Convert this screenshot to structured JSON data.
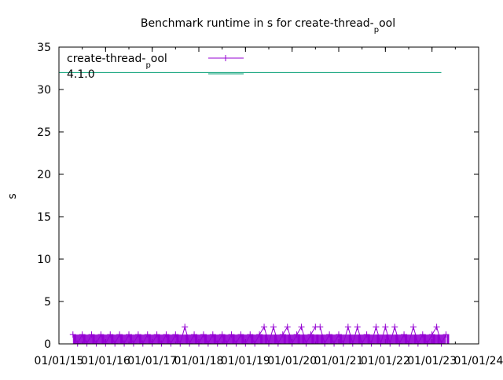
{
  "chart_data": {
    "type": "line",
    "title": "Benchmark runtime in s for create-thread-_pool",
    "xlabel": "",
    "ylabel": "s",
    "ylim": [
      0,
      35
    ],
    "xlim": [
      2015,
      2024
    ],
    "yticks": [
      0,
      5,
      10,
      15,
      20,
      25,
      30,
      35
    ],
    "xticks": [
      2015,
      2016,
      2017,
      2018,
      2019,
      2020,
      2021,
      2022,
      2023,
      2024
    ],
    "xtick_labels": [
      "01/01/15",
      "01/01/16",
      "01/01/17",
      "01/01/18",
      "01/01/19",
      "01/01/20",
      "01/01/21",
      "01/01/22",
      "01/01/23",
      "01/01/24"
    ],
    "legend_placement": "top-left",
    "series": [
      {
        "name": "create-thread-_pool",
        "color": "#9400d3",
        "style": "linespoints",
        "x": [
          2015.3,
          2015.4,
          2015.5,
          2015.6,
          2015.7,
          2015.8,
          2015.9,
          2016.0,
          2016.1,
          2016.2,
          2016.3,
          2016.4,
          2016.5,
          2016.6,
          2016.7,
          2016.8,
          2016.9,
          2017.0,
          2017.1,
          2017.2,
          2017.3,
          2017.4,
          2017.5,
          2017.6,
          2017.7,
          2017.8,
          2017.9,
          2018.0,
          2018.1,
          2018.2,
          2018.3,
          2018.4,
          2018.5,
          2018.6,
          2018.7,
          2018.8,
          2018.9,
          2019.0,
          2019.1,
          2019.2,
          2019.3,
          2019.4,
          2019.5,
          2019.6,
          2019.7,
          2019.8,
          2019.9,
          2020.0,
          2020.1,
          2020.2,
          2020.3,
          2020.4,
          2020.5,
          2020.6,
          2020.7,
          2020.8,
          2020.9,
          2021.0,
          2021.1,
          2021.2,
          2021.3,
          2021.4,
          2021.5,
          2021.6,
          2021.7,
          2021.8,
          2021.9,
          2022.0,
          2022.1,
          2022.2,
          2022.3,
          2022.4,
          2022.5,
          2022.6,
          2022.7,
          2022.8,
          2022.9,
          2023.0,
          2023.1,
          2023.2,
          2023.3
        ],
        "y": [
          1.1,
          0.05,
          1.1,
          0.05,
          1.1,
          0.05,
          1.1,
          0.05,
          1.1,
          0.05,
          1.1,
          0.05,
          1.1,
          0.05,
          1.1,
          0.05,
          1.1,
          0.05,
          1.1,
          0.05,
          1.1,
          0.05,
          1.1,
          0.05,
          2.0,
          0.05,
          1.1,
          0.05,
          1.1,
          0.05,
          1.1,
          0.05,
          1.1,
          0.05,
          1.1,
          0.05,
          1.1,
          0.05,
          1.1,
          0.05,
          1.1,
          2.0,
          0.05,
          2.0,
          0.05,
          1.1,
          2.0,
          0.05,
          1.1,
          2.0,
          0.05,
          1.1,
          2.0,
          2.0,
          0.05,
          1.1,
          0.05,
          1.1,
          0.05,
          2.0,
          0.05,
          2.0,
          0.05,
          1.1,
          0.05,
          2.0,
          0.05,
          2.0,
          0.05,
          2.0,
          0.05,
          1.1,
          0.05,
          2.0,
          0.05,
          1.1,
          0.05,
          1.1,
          2.0,
          0.05,
          1.1
        ]
      },
      {
        "name": "4.1.0",
        "color": "#009e73",
        "style": "line",
        "x": [
          2015,
          2023.2
        ],
        "y": [
          32,
          32
        ]
      }
    ]
  }
}
